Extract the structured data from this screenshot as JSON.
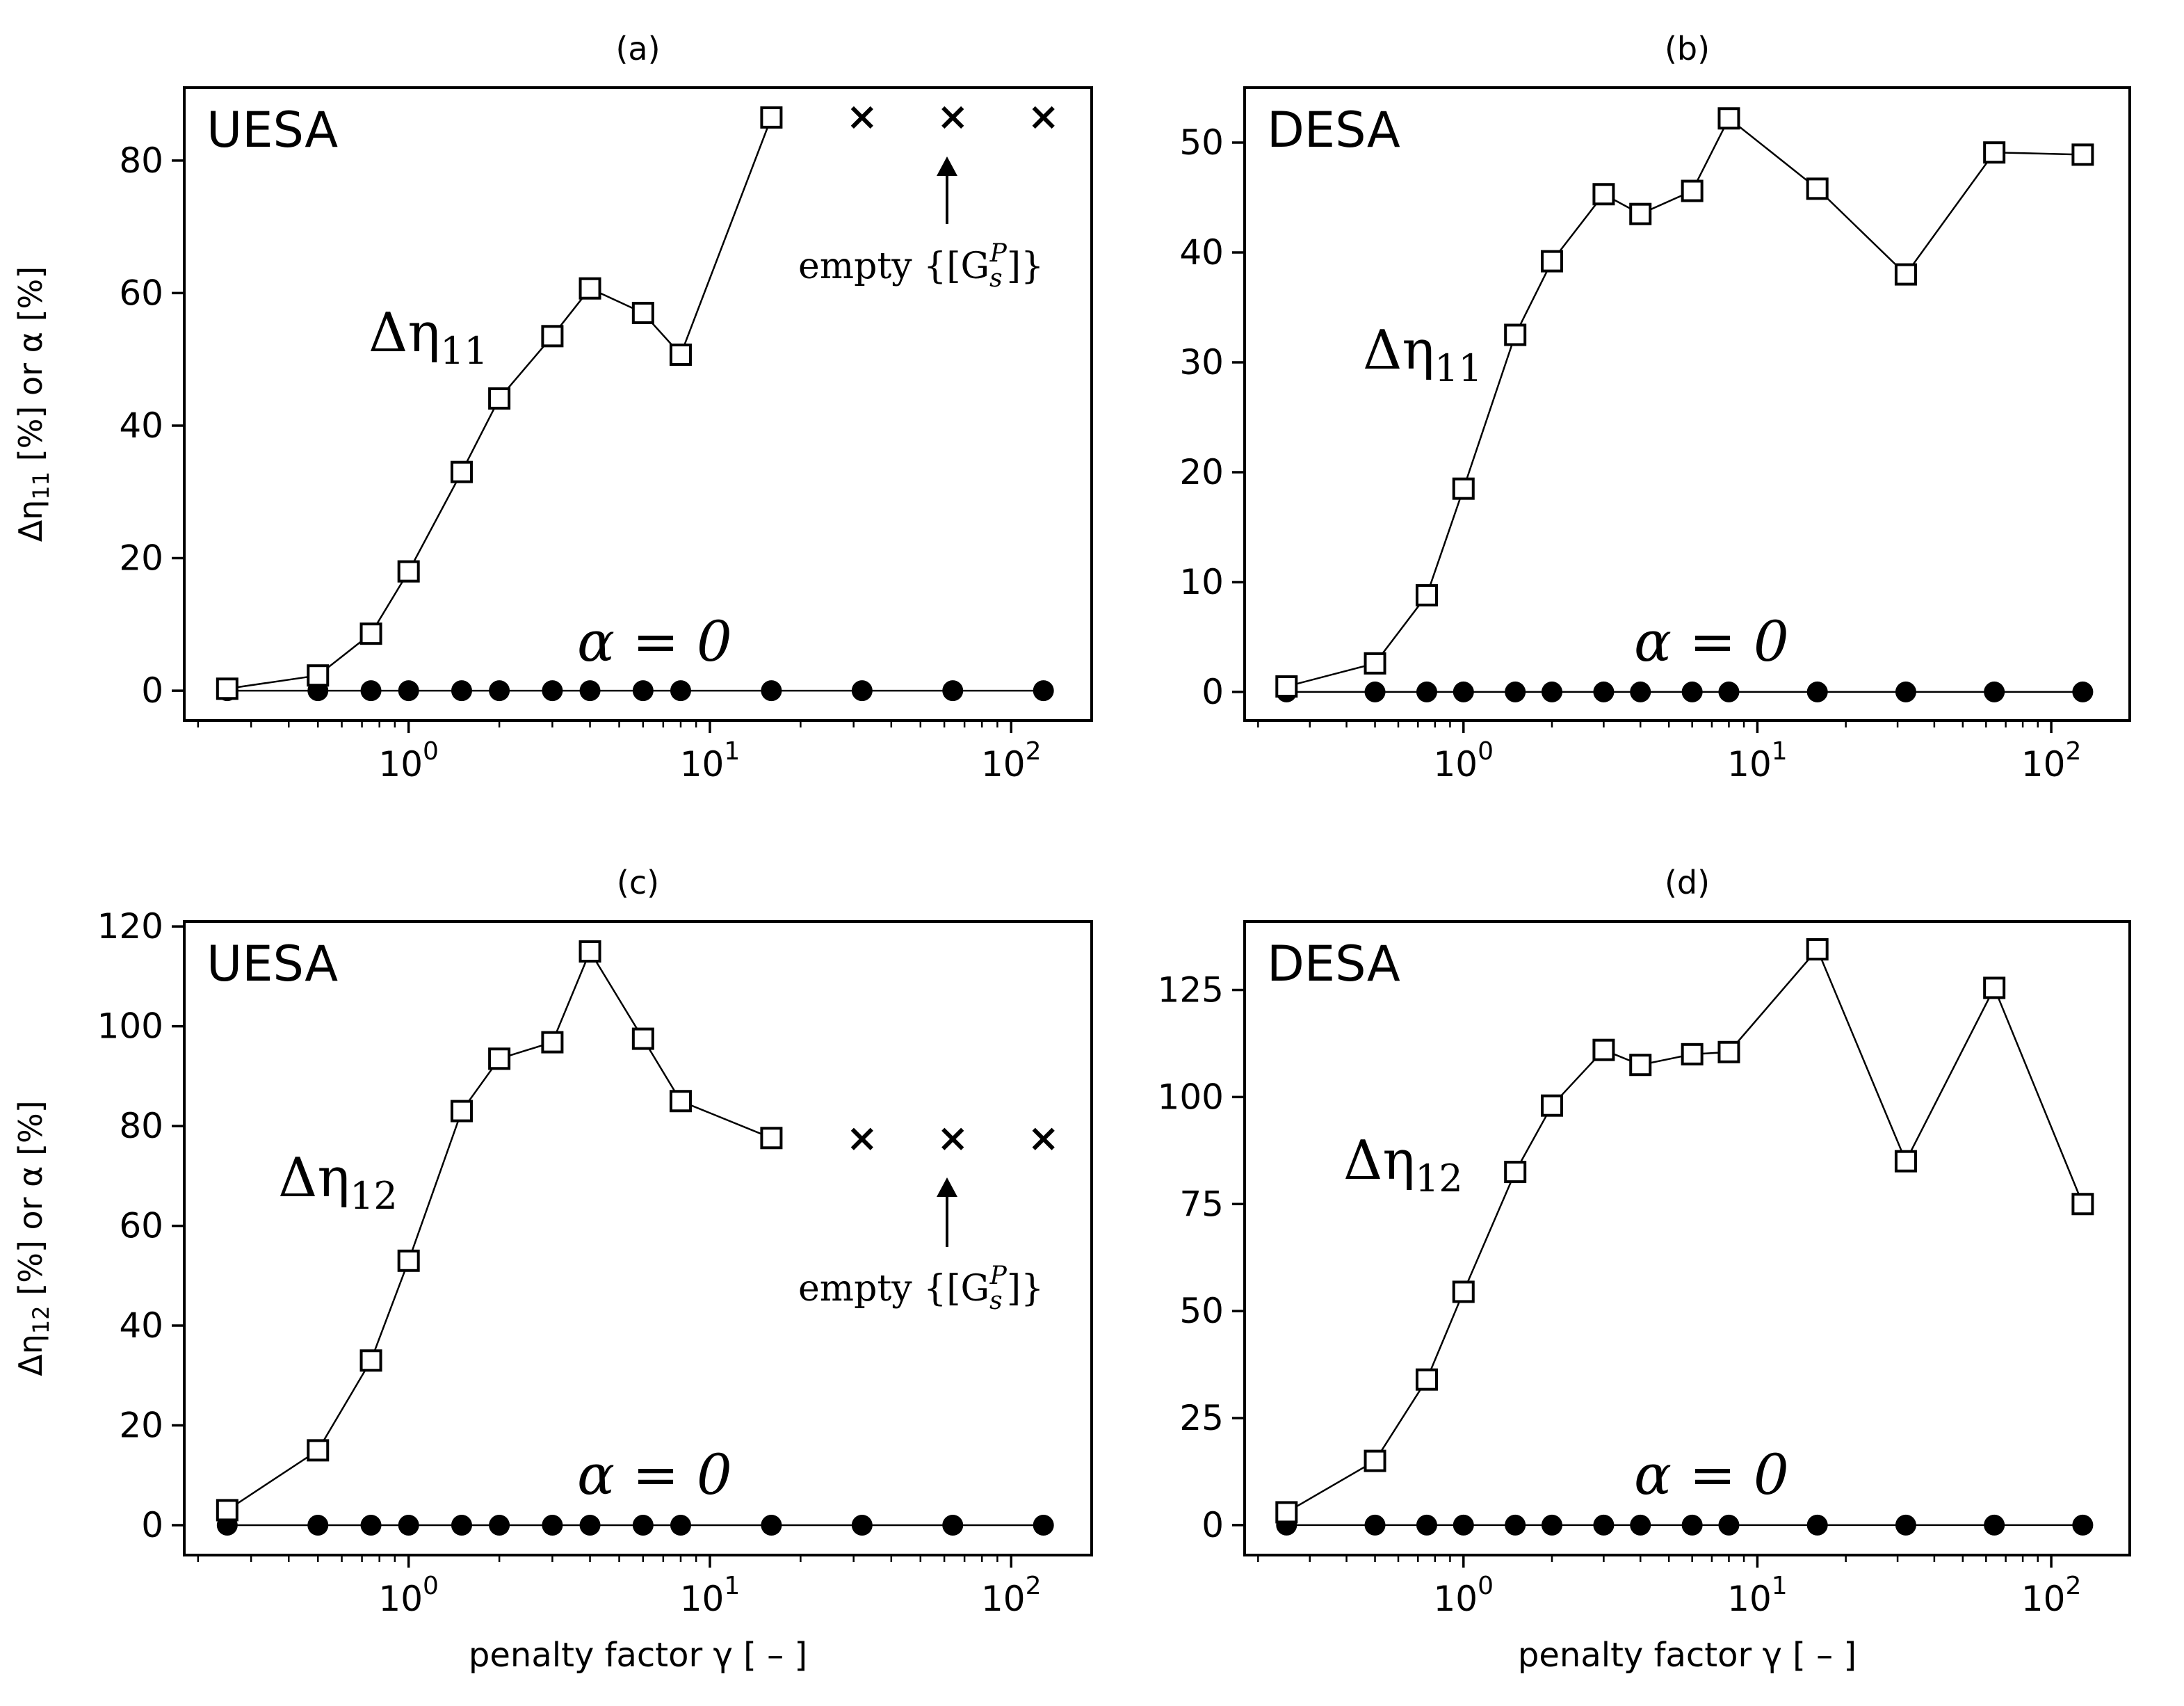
{
  "colors": {
    "ink": "#000000",
    "background": "#ffffff"
  },
  "shared": {
    "xlabel": "penalty factor γ [ – ]",
    "alpha_label": "α = 0",
    "annotation_text": "empty {[G",
    "annotation_sub": "s",
    "annotation_sup": "P",
    "annotation_close": "]}",
    "xtick_base": "10",
    "xtick_exponents": [
      "0",
      "1",
      "2"
    ]
  },
  "chart_data": [
    {
      "id": "a",
      "type": "line",
      "title": "(a)",
      "method_label": "UESA",
      "curve_label": "Δη",
      "curve_sub": "11",
      "ylabel_main": "Δη",
      "ylabel_sub": "11",
      "ylabel_tail": " [%] or α [%]",
      "xscale": "log",
      "xlim": [
        0.18,
        185
      ],
      "ylim": [
        -4.5,
        91
      ],
      "yticks": [
        0,
        20,
        40,
        60,
        80
      ],
      "ytick_labels": [
        "0",
        "20",
        "40",
        "60",
        "80"
      ],
      "x": [
        0.25,
        0.5,
        0.75,
        1,
        1.5,
        2,
        3,
        4,
        6,
        8,
        16
      ],
      "delta_eta": [
        0.3,
        2.3,
        8.6,
        18,
        33,
        44.1,
        53.5,
        60.7,
        57,
        50.7,
        86.5
      ],
      "alpha_x": [
        0.25,
        0.5,
        0.75,
        1,
        1.5,
        2,
        3,
        4,
        6,
        8,
        16,
        32,
        64,
        128
      ],
      "alpha": [
        0,
        0,
        0,
        0,
        0,
        0,
        0,
        0,
        0,
        0,
        0,
        0,
        0,
        0
      ],
      "empty_x": [
        32,
        64,
        128
      ],
      "empty_y": [
        86.5,
        86.5,
        86.5
      ],
      "annotation": true
    },
    {
      "id": "b",
      "type": "line",
      "title": "(b)",
      "method_label": "DESA",
      "curve_label": "Δη",
      "curve_sub": "11",
      "ylabel_main": "",
      "ylabel_sub": "",
      "ylabel_tail": "",
      "xscale": "log",
      "xlim": [
        0.18,
        185
      ],
      "ylim": [
        -2.6,
        55
      ],
      "yticks": [
        0,
        10,
        20,
        30,
        40,
        50
      ],
      "ytick_labels": [
        "0",
        "10",
        "20",
        "30",
        "40",
        "50"
      ],
      "x": [
        0.25,
        0.5,
        0.75,
        1,
        1.5,
        2,
        3,
        4,
        6,
        8,
        16,
        32,
        64,
        128
      ],
      "delta_eta": [
        0.5,
        2.6,
        8.8,
        18.5,
        32.5,
        39.2,
        45.3,
        43.5,
        45.6,
        52.2,
        45.8,
        38,
        49.1,
        48.9
      ],
      "alpha_x": [
        0.25,
        0.5,
        0.75,
        1,
        1.5,
        2,
        3,
        4,
        6,
        8,
        16,
        32,
        64,
        128
      ],
      "alpha": [
        0,
        0,
        0,
        0,
        0,
        0,
        0,
        0,
        0,
        0,
        0,
        0,
        0,
        0
      ],
      "empty_x": [],
      "empty_y": [],
      "annotation": false
    },
    {
      "id": "c",
      "type": "line",
      "title": "(c)",
      "method_label": "UESA",
      "curve_label": "Δη",
      "curve_sub": "12",
      "ylabel_main": "Δη",
      "ylabel_sub": "12",
      "ylabel_tail": " [%] or α [%]",
      "xscale": "log",
      "xlim": [
        0.18,
        185
      ],
      "ylim": [
        -6,
        121
      ],
      "yticks": [
        0,
        20,
        40,
        60,
        80,
        100,
        120
      ],
      "ytick_labels": [
        "0",
        "20",
        "40",
        "60",
        "80",
        "100",
        "120"
      ],
      "x": [
        0.25,
        0.5,
        0.75,
        1,
        1.5,
        2,
        3,
        4,
        6,
        8,
        16
      ],
      "delta_eta": [
        3,
        15,
        33,
        53,
        83,
        93.5,
        96.8,
        115,
        97.5,
        85,
        77.6
      ],
      "alpha_x": [
        0.25,
        0.5,
        0.75,
        1,
        1.5,
        2,
        3,
        4,
        6,
        8,
        16,
        32,
        64,
        128
      ],
      "alpha": [
        0,
        0,
        0,
        0,
        0,
        0,
        0,
        0,
        0,
        0,
        0,
        0,
        0,
        0
      ],
      "empty_x": [
        32,
        64,
        128
      ],
      "empty_y": [
        77.4,
        77.4,
        77.4
      ],
      "annotation": true
    },
    {
      "id": "d",
      "type": "line",
      "title": "(d)",
      "method_label": "DESA",
      "curve_label": "Δη",
      "curve_sub": "12",
      "ylabel_main": "",
      "ylabel_sub": "",
      "ylabel_tail": "",
      "xscale": "log",
      "xlim": [
        0.18,
        185
      ],
      "ylim": [
        -7,
        141
      ],
      "yticks": [
        0,
        25,
        50,
        75,
        100,
        125
      ],
      "ytick_labels": [
        "0",
        "25",
        "50",
        "75",
        "100",
        "125"
      ],
      "x": [
        0.25,
        0.5,
        0.75,
        1,
        1.5,
        2,
        3,
        4,
        6,
        8,
        16,
        32,
        64,
        128
      ],
      "delta_eta": [
        3,
        15,
        34,
        54.5,
        82.5,
        98,
        111,
        107.5,
        110,
        110.5,
        134.5,
        85,
        125.5,
        75
      ],
      "alpha_x": [
        0.25,
        0.5,
        0.75,
        1,
        1.5,
        2,
        3,
        4,
        6,
        8,
        16,
        32,
        64,
        128
      ],
      "alpha": [
        0,
        0,
        0,
        0,
        0,
        0,
        0,
        0,
        0,
        0,
        0,
        0,
        0,
        0
      ],
      "empty_x": [],
      "empty_y": [],
      "annotation": false
    }
  ]
}
